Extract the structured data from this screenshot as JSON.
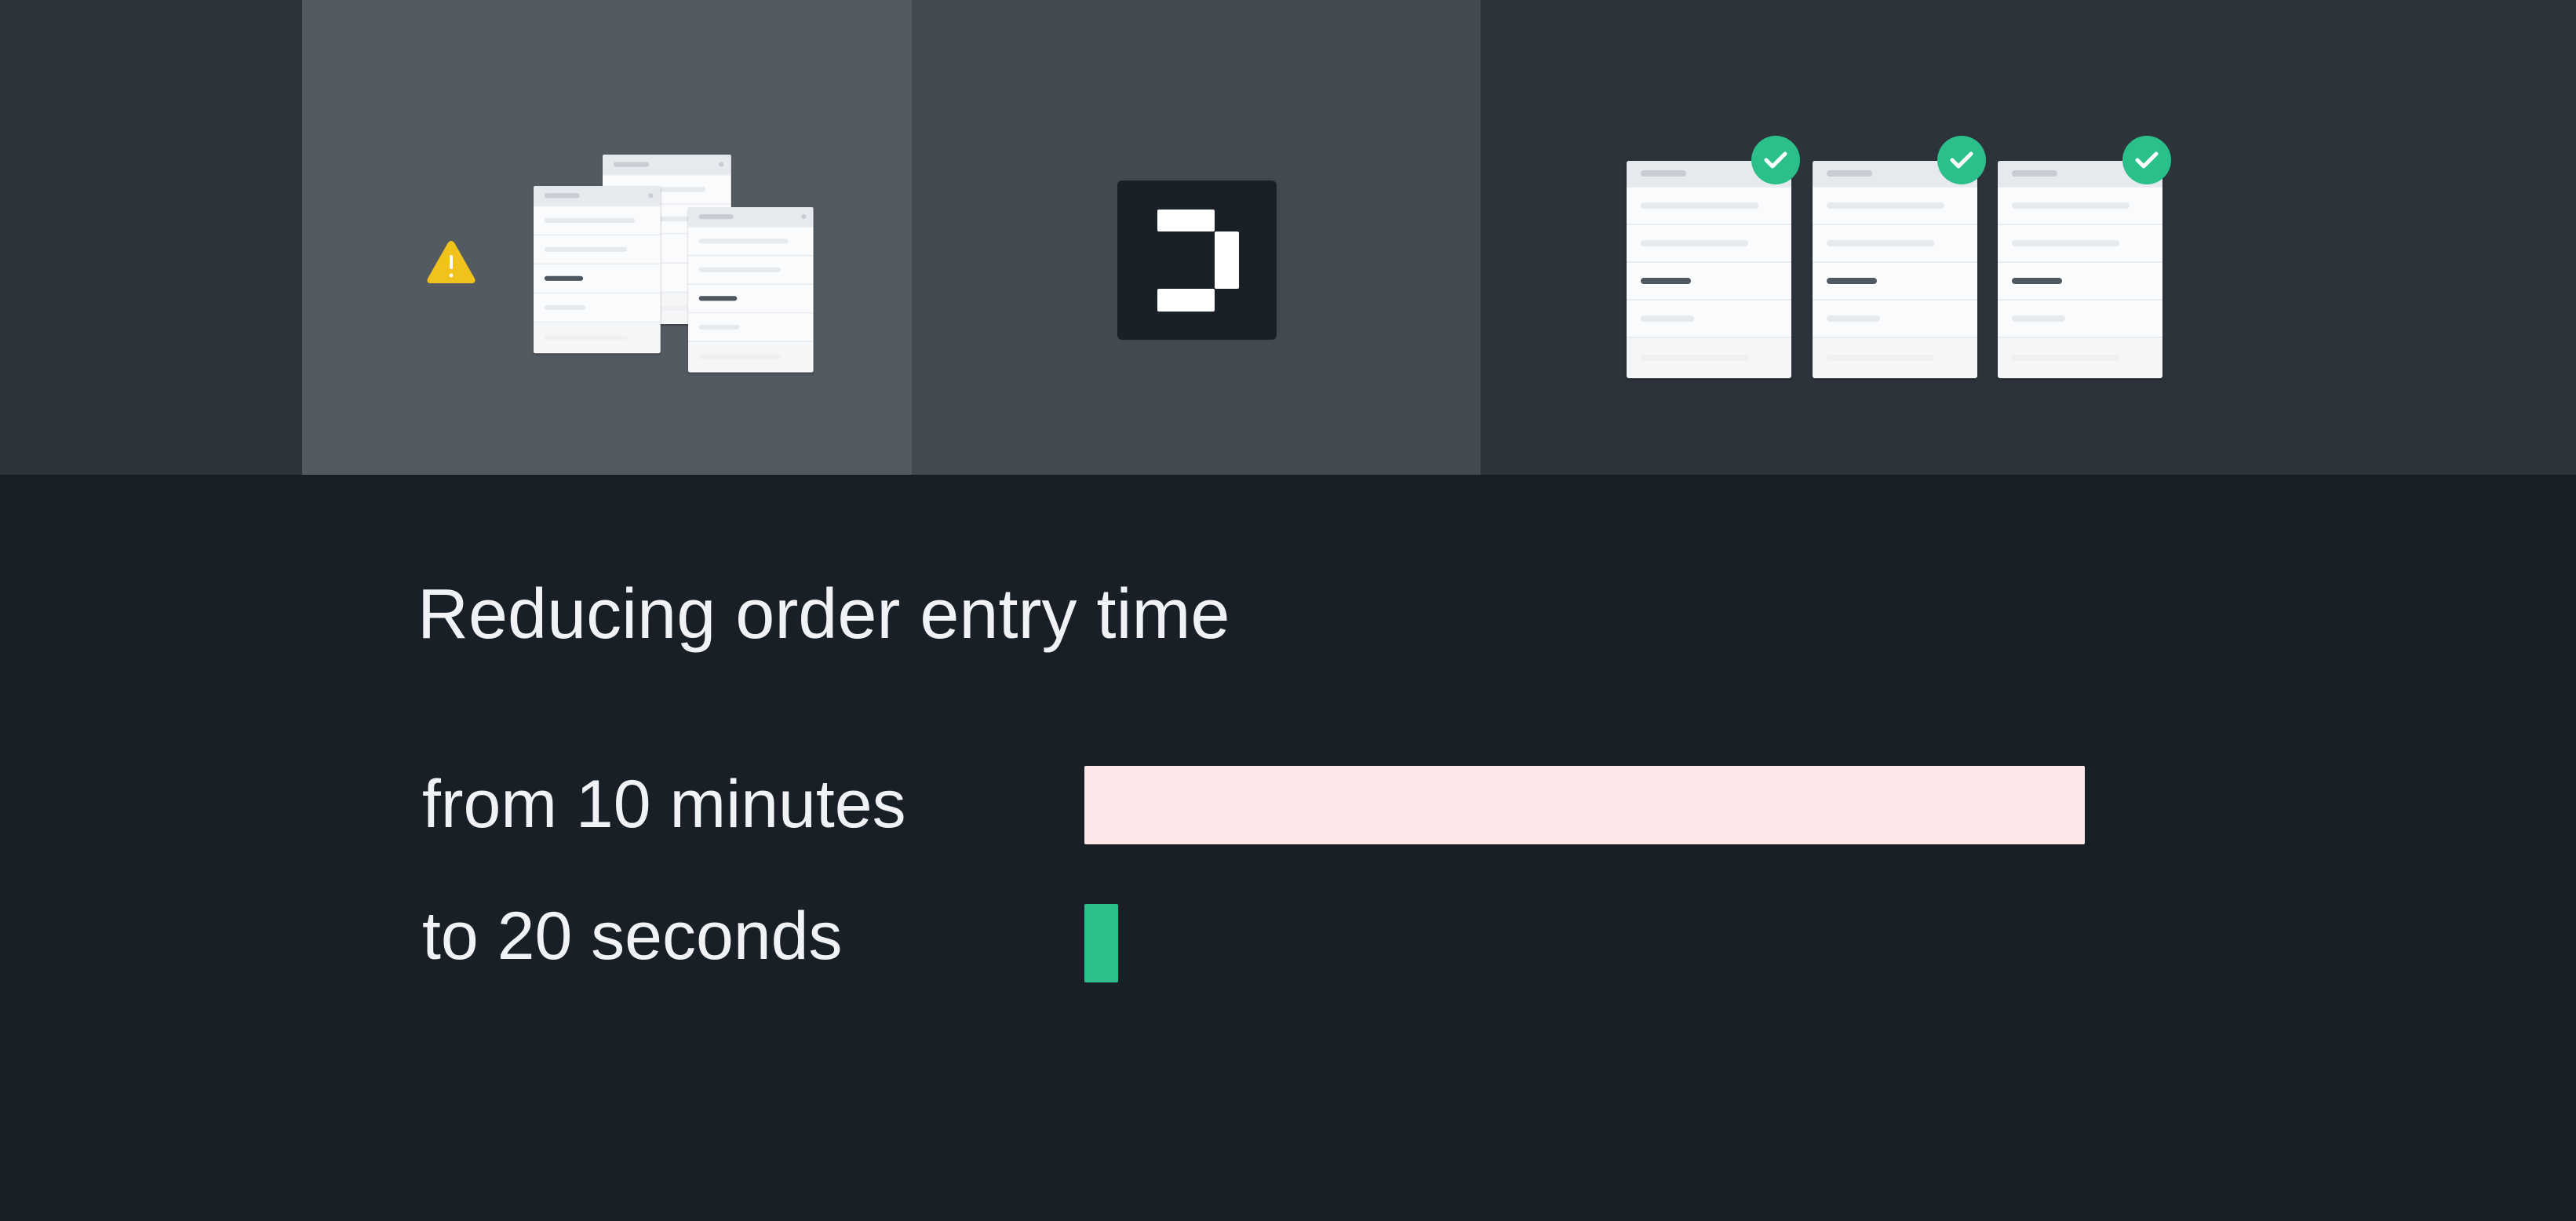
{
  "hero": {
    "before_icon": "warning-triangle-icon",
    "logo_icon": "bracket-logo-icon",
    "after_icon": "check-circle-icon",
    "warning_color": "#f1c21b",
    "success_color": "#2bbf89"
  },
  "title": "Reducing order entry time",
  "comparison": {
    "rows": [
      {
        "label": "from 10 minutes",
        "value_seconds": 600,
        "color": "#fde7e9"
      },
      {
        "label": "to 20 seconds",
        "value_seconds": 20,
        "color": "#2bbf89"
      }
    ]
  }
}
